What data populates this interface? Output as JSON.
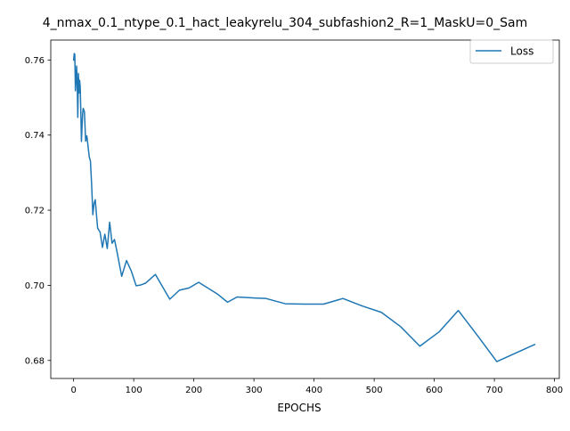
{
  "chart_data": {
    "type": "line",
    "title": "4_nmax_0.1_ntype_0.1_hact_leakyrelu_304_subfashion2_R=1_MaskU=0_Sam",
    "xlabel": "EPOCHS",
    "ylabel": "",
    "xlim": [
      -38,
      808
    ],
    "ylim": [
      0.6752,
      0.7653
    ],
    "xticks": [
      0,
      100,
      200,
      300,
      400,
      500,
      600,
      700,
      800
    ],
    "yticks": [
      0.68,
      0.7,
      0.72,
      0.74,
      0.76
    ],
    "ytick_labels": [
      "0.68",
      "0.70",
      "0.72",
      "0.74",
      "0.76"
    ],
    "grid": false,
    "legend_position": "top-right",
    "series": [
      {
        "name": "Loss",
        "color": "#1f77b4",
        "x": [
          0,
          1,
          2,
          3,
          4,
          5,
          6,
          7,
          8,
          9,
          10,
          11,
          12,
          13,
          14,
          15,
          16,
          18,
          20,
          22,
          24,
          26,
          28,
          30,
          32,
          34,
          36,
          38,
          40,
          44,
          48,
          52,
          56,
          60,
          64,
          68,
          72,
          80,
          88,
          96,
          104,
          112,
          120,
          136,
          160,
          176,
          192,
          208,
          240,
          256,
          272,
          304,
          320,
          352,
          384,
          416,
          448,
          480,
          512,
          544,
          576,
          608,
          640,
          672,
          704,
          736,
          768
        ],
        "values": [
          0.7598,
          0.7617,
          0.7615,
          0.7518,
          0.7546,
          0.7584,
          0.7532,
          0.7447,
          0.7564,
          0.7512,
          0.7546,
          0.7528,
          0.7462,
          0.7383,
          0.7421,
          0.7456,
          0.7471,
          0.7462,
          0.7384,
          0.7398,
          0.7371,
          0.7342,
          0.7331,
          0.7268,
          0.7188,
          0.7218,
          0.7228,
          0.7188,
          0.7152,
          0.7142,
          0.7101,
          0.7136,
          0.7098,
          0.7168,
          0.7112,
          0.7122,
          0.7091,
          0.7024,
          0.7066,
          0.7038,
          0.6999,
          0.7001,
          0.7006,
          0.7029,
          0.6963,
          0.6987,
          0.6993,
          0.7008,
          0.6976,
          0.6955,
          0.6969,
          0.6966,
          0.6965,
          0.6951,
          0.695,
          0.695,
          0.6965,
          0.6945,
          0.6928,
          0.689,
          0.6838,
          0.6876,
          0.6933,
          0.6866,
          0.6797,
          0.682,
          0.6843
        ]
      }
    ]
  }
}
